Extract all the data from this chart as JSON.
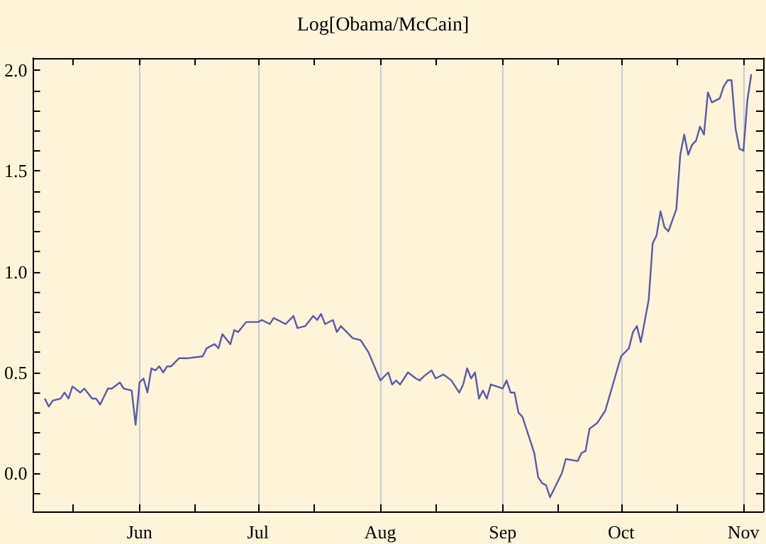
{
  "chart_data": {
    "type": "line",
    "title": "Log[Obama/McCain]",
    "grid": "x",
    "xlim": [
      "--05-05",
      "--11-06"
    ],
    "xticks": [
      {
        "value": "--05-15",
        "label": null
      },
      {
        "value": "--06-01",
        "label": "Jun"
      },
      {
        "value": "--06-15",
        "label": null
      },
      {
        "value": "--07-01",
        "label": "Jul"
      },
      {
        "value": "--07-15",
        "label": null
      },
      {
        "value": "--08-01",
        "label": "Aug"
      },
      {
        "value": "--08-15",
        "label": null
      },
      {
        "value": "--09-01",
        "label": "Sep"
      },
      {
        "value": "--09-15",
        "label": null
      },
      {
        "value": "--10-01",
        "label": "Oct"
      },
      {
        "value": "--10-15",
        "label": null
      },
      {
        "value": "--11-01",
        "label": "Nov"
      }
    ],
    "ylim": [
      -0.19,
      2.06
    ],
    "yticks": [
      {
        "value": -0.1,
        "label": null
      },
      {
        "value": 0,
        "label": "0.0"
      },
      {
        "value": 0.1,
        "label": null
      },
      {
        "value": 0.2,
        "label": null
      },
      {
        "value": 0.3,
        "label": null
      },
      {
        "value": 0.4,
        "label": null
      },
      {
        "value": 0.5,
        "label": "0.5"
      },
      {
        "value": 0.6,
        "label": null
      },
      {
        "value": 0.7,
        "label": null
      },
      {
        "value": 0.8,
        "label": null
      },
      {
        "value": 0.9,
        "label": null
      },
      {
        "value": 1,
        "label": "1.0"
      },
      {
        "value": 1.1,
        "label": null
      },
      {
        "value": 1.2,
        "label": null
      },
      {
        "value": 1.3,
        "label": null
      },
      {
        "value": 1.4,
        "label": null
      },
      {
        "value": 1.5,
        "label": "1.5"
      },
      {
        "value": 1.6,
        "label": null
      },
      {
        "value": 1.7,
        "label": null
      },
      {
        "value": 1.8,
        "label": null
      },
      {
        "value": 1.9,
        "label": null
      },
      {
        "value": 2,
        "label": "2.0"
      }
    ],
    "x": [
      "--05-08",
      "--05-09",
      "--05-10",
      "--05-12",
      "--05-13",
      "--05-14",
      "--05-15",
      "--05-17",
      "--05-18",
      "--05-20",
      "--05-21",
      "--05-22",
      "--05-24",
      "--05-25",
      "--05-27",
      "--05-28",
      "--05-30",
      "--05-31",
      "--06-01",
      "--06-02",
      "--06-03",
      "--06-04",
      "--06-05",
      "--06-06",
      "--06-07",
      "--06-08",
      "--06-09",
      "--06-11",
      "--06-13",
      "--06-17",
      "--06-18",
      "--06-20",
      "--06-21",
      "--06-22",
      "--06-24",
      "--06-25",
      "--06-26",
      "--06-28",
      "--07-01",
      "--07-02",
      "--07-04",
      "--07-05",
      "--07-08",
      "--07-10",
      "--07-11",
      "--07-13",
      "--07-15",
      "--07-16",
      "--07-17",
      "--07-18",
      "--07-20",
      "--07-21",
      "--07-22",
      "--07-24",
      "--07-25",
      "--07-27",
      "--07-29",
      "--08-01",
      "--08-03",
      "--08-04",
      "--08-05",
      "--08-06",
      "--08-08",
      "--08-10",
      "--08-11",
      "--08-12",
      "--08-14",
      "--08-15",
      "--08-17",
      "--08-19",
      "--08-21",
      "--08-22",
      "--08-23",
      "--08-24",
      "--08-25",
      "--08-26",
      "--08-27",
      "--08-28",
      "--08-29",
      "--09-01",
      "--09-02",
      "--09-03",
      "--09-04",
      "--09-05",
      "--09-06",
      "--09-08",
      "--09-09",
      "--09-10",
      "--09-11",
      "--09-12",
      "--09-13",
      "--09-14",
      "--09-16",
      "--09-17",
      "--09-20",
      "--09-21",
      "--09-22",
      "--09-23",
      "--09-25",
      "--09-27",
      "--10-01",
      "--10-03",
      "--10-04",
      "--10-05",
      "--10-06",
      "--10-08",
      "--10-09",
      "--10-10",
      "--10-11",
      "--10-12",
      "--10-13",
      "--10-15",
      "--10-16",
      "--10-17",
      "--10-18",
      "--10-19",
      "--10-20",
      "--10-21",
      "--10-22",
      "--10-23",
      "--10-24",
      "--10-26",
      "--10-27",
      "--10-28",
      "--10-29",
      "--10-30",
      "--10-31",
      "--11-01",
      "--11-02",
      "--11-03"
    ],
    "series": [
      {
        "color": "#5a5aa8",
        "values": [
          0.37,
          0.33,
          0.36,
          0.37,
          0.4,
          0.37,
          0.43,
          0.4,
          0.42,
          0.37,
          0.37,
          0.34,
          0.42,
          0.42,
          0.45,
          0.42,
          0.41,
          0.24,
          0.45,
          0.47,
          0.4,
          0.52,
          0.51,
          0.53,
          0.5,
          0.53,
          0.53,
          0.57,
          0.57,
          0.58,
          0.62,
          0.64,
          0.62,
          0.69,
          0.64,
          0.71,
          0.7,
          0.75,
          0.75,
          0.76,
          0.74,
          0.77,
          0.74,
          0.78,
          0.72,
          0.73,
          0.78,
          0.76,
          0.79,
          0.74,
          0.76,
          0.7,
          0.73,
          0.69,
          0.67,
          0.66,
          0.6,
          0.46,
          0.5,
          0.44,
          0.46,
          0.44,
          0.5,
          0.47,
          0.46,
          0.48,
          0.51,
          0.47,
          0.49,
          0.46,
          0.4,
          0.44,
          0.52,
          0.47,
          0.5,
          0.37,
          0.41,
          0.37,
          0.44,
          0.42,
          0.46,
          0.4,
          0.4,
          0.3,
          0.28,
          0.16,
          0.1,
          -0.02,
          -0.05,
          -0.06,
          -0.12,
          -0.08,
          0.0,
          0.07,
          0.06,
          0.1,
          0.11,
          0.22,
          0.25,
          0.31,
          0.58,
          0.62,
          0.7,
          0.73,
          0.65,
          0.86,
          1.14,
          1.18,
          1.3,
          1.22,
          1.2,
          1.31,
          1.58,
          1.68,
          1.58,
          1.63,
          1.65,
          1.72,
          1.68,
          1.89,
          1.84,
          1.86,
          1.92,
          1.95,
          1.95,
          1.71,
          1.61,
          1.6,
          1.85,
          1.98
        ]
      }
    ]
  }
}
